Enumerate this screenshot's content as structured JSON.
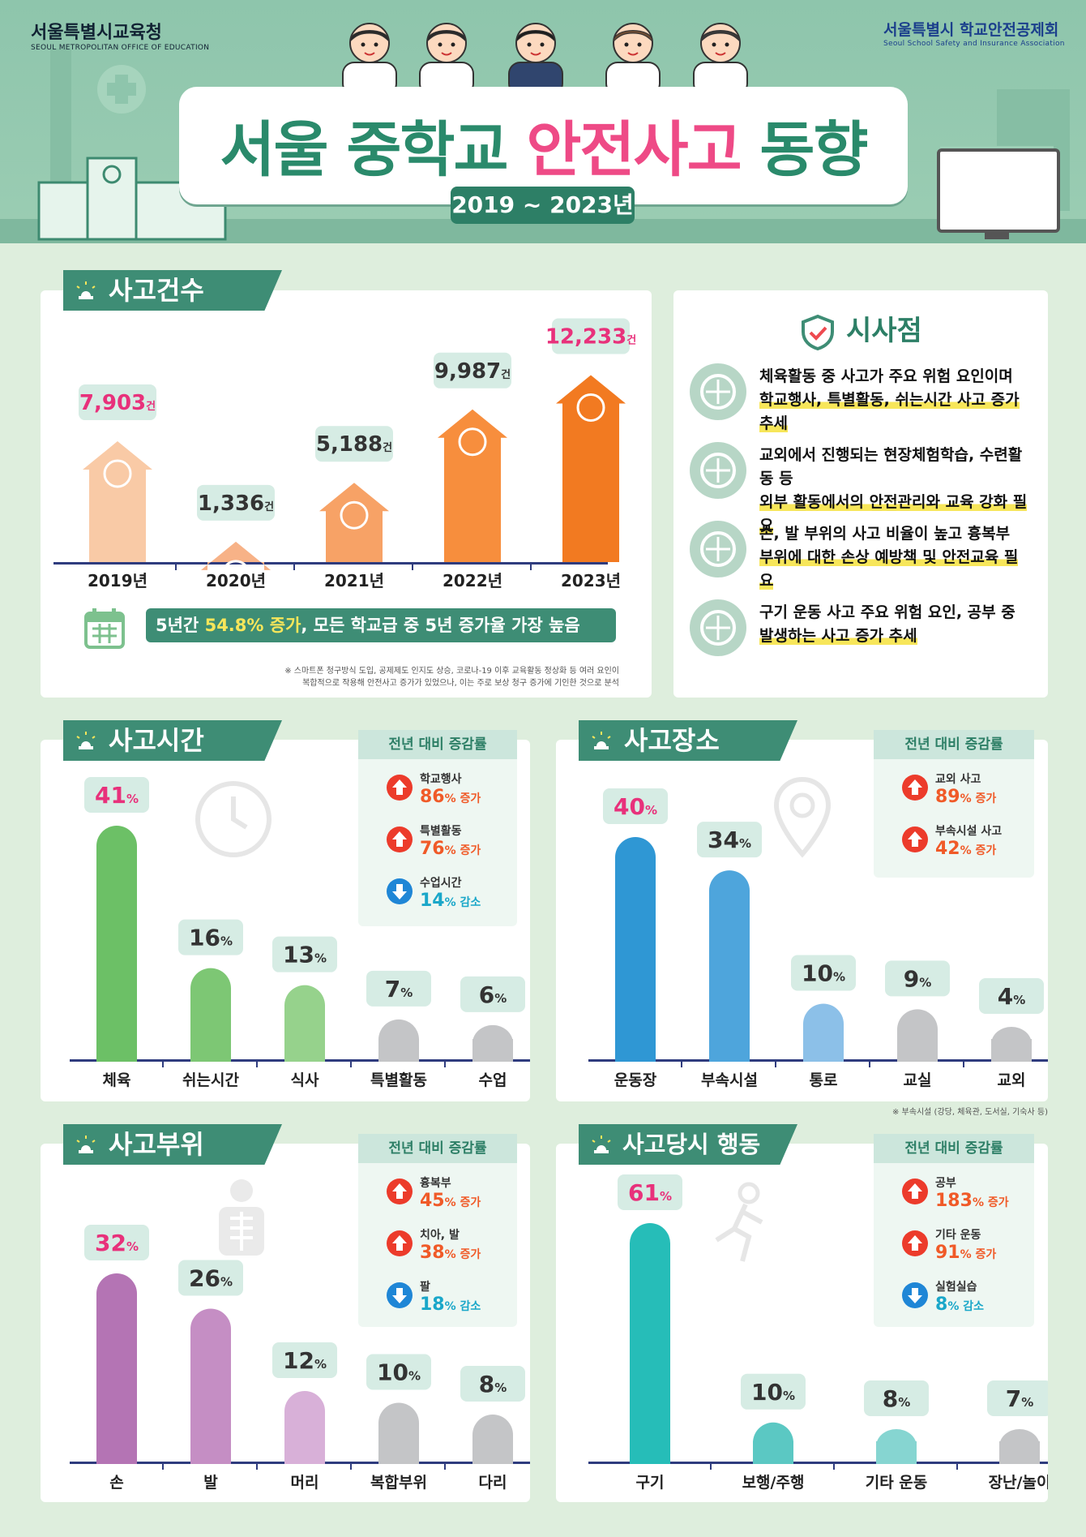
{
  "header": {
    "org_left": "서울특별시교육청",
    "org_left_en": "SEOUL METROPOLITAN OFFICE OF EDUCATION",
    "org_right": "서울특별시 학교안전공제회",
    "org_right_en": "Seoul School Safety and Insurance Association",
    "title_a": "서울 중학교",
    "title_b": "안전사고",
    "title_c": "동향",
    "years": "2019 ~ 2023년"
  },
  "colors": {
    "accent": "#3e8d75",
    "pink": "#e8317b",
    "up": "#f05a28",
    "down": "#1aa7c9"
  },
  "sections": {
    "count": "사고건수",
    "time": "사고시간",
    "place": "사고장소",
    "body": "사고부위",
    "action": "사고당시 행동",
    "insight": "시사점",
    "change": "전년 대비 증감률"
  },
  "count_banner": {
    "a": "5년간 ",
    "b": "54.8% 증가",
    "c": ", 모든 학교급 중 5년 증가율 가장 높음"
  },
  "count_note": {
    "l1": "※ 스마트폰 청구방식 도입, 공제제도 인지도 상승, 코로나-19 이후 교육활동 정상화 등 여러 요인이",
    "l2": "복합적으로 작용해 안전사고 증가가 있었으나, 이는 주로 보상 청구 증가에 기인한 것으로 분석"
  },
  "place_note": "※ 부속시설 (강당, 체육관, 도서실, 기숙사 등)",
  "insights": [
    {
      "icon": "basketball-icon",
      "l1": "체육활동 중 사고가 주요 위험 요인이며",
      "l2": "학교행사, 특별활동, 쉬는시간 사고 증가 추세"
    },
    {
      "icon": "shield-checklist-icon",
      "l1": "교외에서 진행되는 현장체험학습, 수련활동 등",
      "l2": "외부 활동에서의 안전관리와 교육 강화 필요"
    },
    {
      "icon": "foot-icon",
      "l1": "손, 발 부위의 사고 비율이 높고 흉복부",
      "l2": "부위에 대한 손상 예방책 및 안전교육 필요"
    },
    {
      "icon": "ball-icon",
      "l1": "구기 운동 사고 주요 위험 요인, 공부 중",
      "l2": "발생하는 사고 증가 추세"
    }
  ],
  "changes": {
    "time": [
      {
        "label": "학교행사",
        "value": "86%",
        "word": "증가",
        "dir": "up"
      },
      {
        "label": "특별활동",
        "value": "76%",
        "word": "증가",
        "dir": "up"
      },
      {
        "label": "수업시간",
        "value": "14%",
        "word": "감소",
        "dir": "down"
      }
    ],
    "place": [
      {
        "label": "교외 사고",
        "value": "89%",
        "word": "증가",
        "dir": "up"
      },
      {
        "label": "부속시설 사고",
        "value": "42%",
        "word": "증가",
        "dir": "up"
      }
    ],
    "body": [
      {
        "label": "흉복부",
        "value": "45%",
        "word": "증가",
        "dir": "up"
      },
      {
        "label": "치아, 발",
        "value": "38%",
        "word": "증가",
        "dir": "up"
      },
      {
        "label": "팔",
        "value": "18%",
        "word": "감소",
        "dir": "down"
      }
    ],
    "action": [
      {
        "label": "공부",
        "value": "183%",
        "word": "증가",
        "dir": "up"
      },
      {
        "label": "기타 운동",
        "value": "91%",
        "word": "증가",
        "dir": "up"
      },
      {
        "label": "실험실습",
        "value": "8%",
        "word": "감소",
        "dir": "down"
      }
    ]
  },
  "chart_data": [
    {
      "type": "bar",
      "id": "count",
      "categories": [
        "2019년",
        "2020년",
        "2021년",
        "2022년",
        "2023년"
      ],
      "values": [
        7903,
        1336,
        5188,
        9987,
        12233
      ],
      "labels": [
        "7,903",
        "1,336",
        "5,188",
        "9,987",
        "12,233"
      ],
      "unit": "건",
      "colors": [
        "#f9caa6",
        "#f7b287",
        "#f7a266",
        "#f78e3d",
        "#f27a21"
      ]
    },
    {
      "type": "bar",
      "id": "time",
      "categories": [
        "체육",
        "쉬는시간",
        "식사",
        "특별활동",
        "수업"
      ],
      "values": [
        41,
        16,
        13,
        7,
        6
      ],
      "unit": "%",
      "colors": [
        "#6cc066",
        "#7dc774",
        "#96d28c",
        "#c4c5c7",
        "#c4c5c7"
      ]
    },
    {
      "type": "bar",
      "id": "place",
      "categories": [
        "운동장",
        "부속시설",
        "통로",
        "교실",
        "교외"
      ],
      "values": [
        40,
        34,
        10,
        9,
        4
      ],
      "unit": "%",
      "colors": [
        "#2f97d4",
        "#4ea5dc",
        "#8cc0e8",
        "#c4c5c7",
        "#c4c5c7"
      ]
    },
    {
      "type": "bar",
      "id": "body",
      "categories": [
        "손",
        "발",
        "머리",
        "복합부위",
        "다리"
      ],
      "values": [
        32,
        26,
        12,
        10,
        8
      ],
      "unit": "%",
      "colors": [
        "#b474b4",
        "#c58ec4",
        "#d8b0d8",
        "#c4c5c7",
        "#c4c5c7"
      ]
    },
    {
      "type": "bar",
      "id": "action",
      "categories": [
        "구기",
        "보행/주행",
        "기타 운동",
        "장난/놀이"
      ],
      "values": [
        61,
        10,
        8,
        7
      ],
      "unit": "%",
      "colors": [
        "#26bdb8",
        "#5bc8c3",
        "#86d5d1",
        "#c4c5c7"
      ]
    }
  ]
}
